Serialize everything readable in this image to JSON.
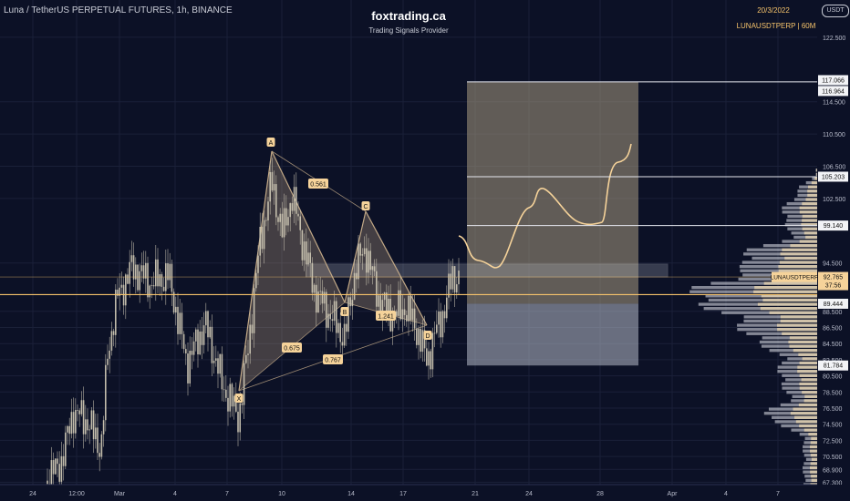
{
  "header": {
    "symbol_title": "Luna / TetherUS PERPETUAL FUTURES, 1h, BINANCE",
    "brand": "foxtrading.ca",
    "brand_sub": "Trading Signals Provider",
    "date": "20/3/2022",
    "ticker_info": "LUNAUSDTPERP | 60M",
    "currency": "USDT"
  },
  "colors": {
    "background": "#0c1126",
    "candle": "#c8c2b0",
    "pattern_fill": "#c2a987",
    "accent_line": "#f6c36b",
    "label_bg": "#f6d39a",
    "volume_a": "#ead5b0",
    "volume_b": "#e6e8ef",
    "target_box": "#a89a7f",
    "stop_box": "#b7bcc8"
  },
  "price_axis": {
    "ticks": [
      "122.500",
      "114.500",
      "110.500",
      "106.500",
      "102.500",
      "94.500",
      "88.500",
      "86.500",
      "84.500",
      "82.500",
      "80.500",
      "78.500",
      "76.500",
      "74.500",
      "72.500",
      "70.500",
      "68.900",
      "67.300"
    ],
    "labels": [
      {
        "text": "117.066",
        "price": 117.066,
        "style": "white"
      },
      {
        "text": "116.964",
        "price": 116.964,
        "style": "white"
      },
      {
        "text": "105.203",
        "price": 105.203,
        "style": "white"
      },
      {
        "text": "99.140",
        "price": 99.14,
        "style": "white"
      },
      {
        "text": "LUNAUSDTPERP",
        "price": 92.765,
        "style": "gold"
      },
      {
        "text": "92.765",
        "price": 92.765,
        "style": "gold"
      },
      {
        "text": "37:56",
        "price": 92.765,
        "style": "gold"
      },
      {
        "text": "89.444",
        "price": 89.444,
        "style": "white"
      },
      {
        "text": "81.784",
        "price": 81.784,
        "style": "white"
      }
    ]
  },
  "time_axis": {
    "ticks": [
      "24",
      "12:00",
      "Mar",
      "4",
      "7",
      "10",
      "14",
      "17",
      "21",
      "24",
      "28",
      "Apr",
      "4",
      "7"
    ]
  },
  "chart_data": {
    "type": "candlestick",
    "pattern": {
      "points": [
        {
          "label": "X",
          "price": 75.4
        },
        {
          "label": "A",
          "price": 104.5
        },
        {
          "label": "B",
          "price": 85.2
        },
        {
          "label": "C",
          "price": 96.3
        },
        {
          "label": "D",
          "price": 82.4
        }
      ],
      "ratios": [
        {
          "text": "0.561"
        },
        {
          "text": "0.675"
        },
        {
          "text": "0.767"
        },
        {
          "text": "1.241"
        }
      ]
    },
    "levels": {
      "target_top": 116.964,
      "target_1": 105.203,
      "target_2": 99.14,
      "current": 92.765,
      "entry": 89.444,
      "stop": 81.784
    }
  }
}
